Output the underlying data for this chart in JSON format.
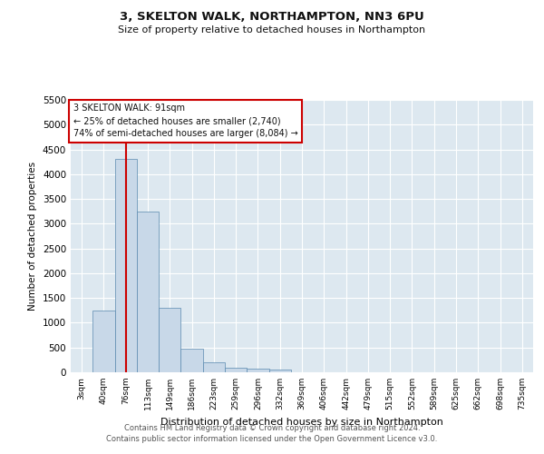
{
  "title": "3, SKELTON WALK, NORTHAMPTON, NN3 6PU",
  "subtitle": "Size of property relative to detached houses in Northampton",
  "xlabel": "Distribution of detached houses by size in Northampton",
  "ylabel": "Number of detached properties",
  "footer_line1": "Contains HM Land Registry data © Crown copyright and database right 2024.",
  "footer_line2": "Contains public sector information licensed under the Open Government Licence v3.0.",
  "annotation_line1": "3 SKELTON WALK: 91sqm",
  "annotation_line2": "← 25% of detached houses are smaller (2,740)",
  "annotation_line3": "74% of semi-detached houses are larger (8,084) →",
  "red_line_color": "#cc0000",
  "bar_color": "#c8d8e8",
  "bar_edgecolor": "#5a8ab0",
  "background_color": "#ffffff",
  "plot_bg_color": "#dde8f0",
  "grid_color": "#ffffff",
  "bins": [
    "3sqm",
    "40sqm",
    "76sqm",
    "113sqm",
    "149sqm",
    "186sqm",
    "223sqm",
    "259sqm",
    "296sqm",
    "332sqm",
    "369sqm",
    "406sqm",
    "442sqm",
    "479sqm",
    "515sqm",
    "552sqm",
    "589sqm",
    "625sqm",
    "662sqm",
    "698sqm",
    "735sqm"
  ],
  "values": [
    0,
    1250,
    4300,
    3250,
    1300,
    480,
    200,
    100,
    70,
    50,
    0,
    0,
    0,
    0,
    0,
    0,
    0,
    0,
    0,
    0,
    0
  ],
  "red_line_x": 2.0,
  "ylim": [
    0,
    5500
  ],
  "yticks": [
    0,
    500,
    1000,
    1500,
    2000,
    2500,
    3000,
    3500,
    4000,
    4500,
    5000,
    5500
  ]
}
